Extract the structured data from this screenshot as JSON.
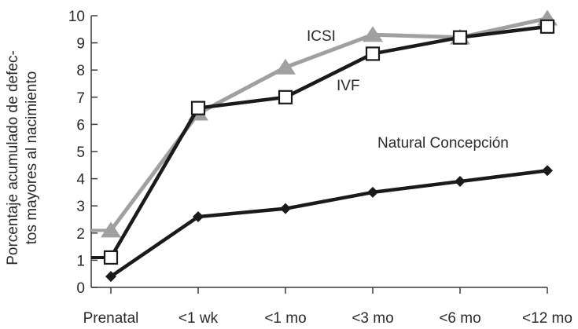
{
  "chart_data": {
    "type": "line",
    "title": "",
    "xlabel": "",
    "ylabel_lines": [
      "Porcentaje acumulado de defec-",
      "tos mayores al nacimiento"
    ],
    "categories": [
      "Prenatal",
      "<1 wk",
      "<1 mo",
      "<3 mo",
      "<6 mo",
      "<12 mo"
    ],
    "yticks": [
      "0",
      "1",
      "2",
      "3",
      "4",
      "5",
      "6",
      "7",
      "8",
      "9",
      "10"
    ],
    "ylim": [
      0,
      10
    ],
    "grid": false,
    "legend": "inline labels",
    "series": [
      {
        "name": "ICSI",
        "marker": "triangle",
        "color": "#a0a0a0",
        "values": [
          2.1,
          6.4,
          8.1,
          9.3,
          9.2,
          9.9
        ]
      },
      {
        "name": "IVF",
        "marker": "square",
        "color": "#1a1a1a",
        "values": [
          1.1,
          6.6,
          7.0,
          8.6,
          9.2,
          9.6
        ]
      },
      {
        "name": "Natural Concepción",
        "marker": "diamond",
        "color": "#1a1a1a",
        "values": [
          0.4,
          2.6,
          2.9,
          3.5,
          3.9,
          4.3
        ]
      }
    ]
  }
}
